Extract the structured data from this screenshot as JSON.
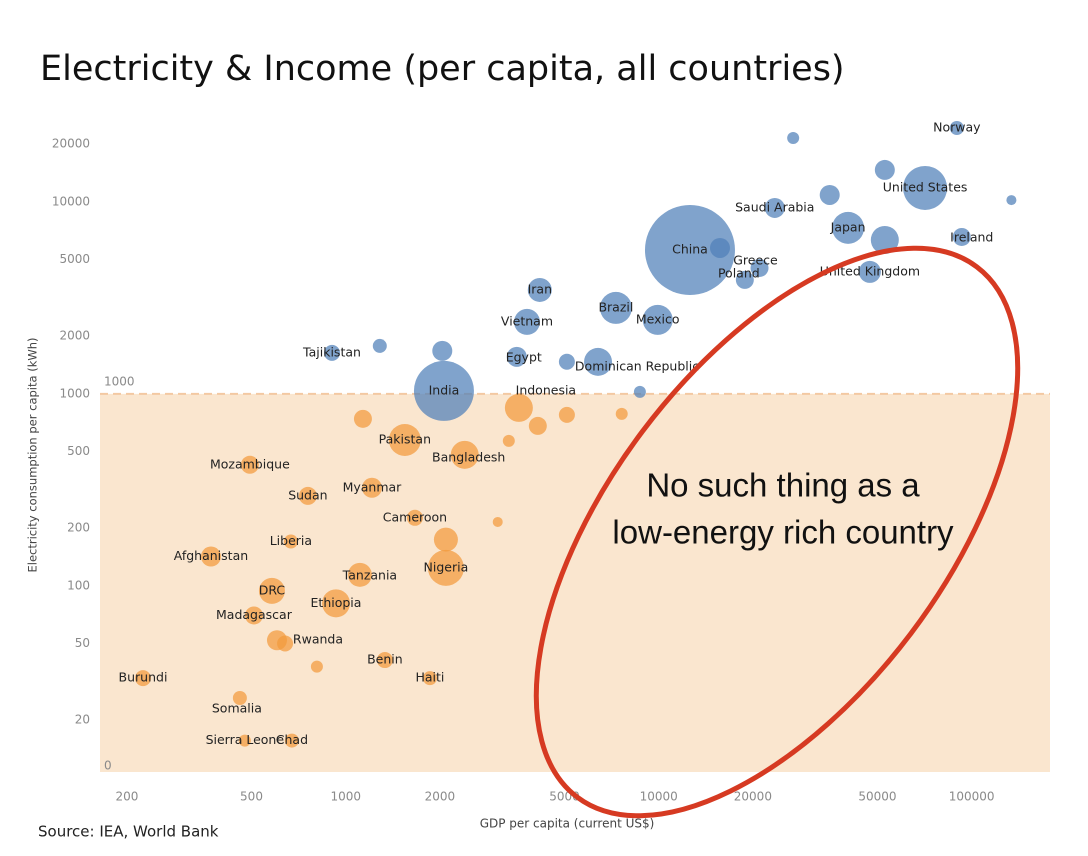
{
  "chart_data": {
    "type": "scatter",
    "title": "Electricity & Income (per capita, all countries)",
    "xlabel": "GDP per capita (current US$)",
    "ylabel": "Electricity consumption per capita (kWh)",
    "source": "Source: IEA, World Bank",
    "xscale": "log",
    "yscale": "log",
    "xlim": [
      164,
      178000
    ],
    "ylim": [
      10.7,
      34000
    ],
    "xticks": [
      200,
      500,
      1000,
      2000,
      5000,
      10000,
      20000,
      50000,
      100000
    ],
    "yticks": [
      20,
      50,
      100,
      200,
      500,
      1000,
      2000,
      5000,
      10000,
      20000
    ],
    "y_floor_label": "0",
    "threshold": 1000,
    "threshold_color": "#fae6cf",
    "annotation": [
      "No such thing as a",
      "low-energy rich country"
    ],
    "annotation_color": "#d63a22",
    "series": [
      {
        "color": "#f39a3b",
        "labels": [
          "Pakistan",
          "Bangladesh",
          "Mozambique",
          "Myanmar",
          "Sudan",
          "Cameroon",
          "Liberia",
          "Afghanistan",
          "Nigeria",
          "Tanzania",
          "DRC",
          "Ethiopia",
          "Madagascar",
          "Rwanda",
          "Benin",
          "Haiti",
          "Burundi",
          "Somalia",
          "Sierra Leone",
          "Chad",
          "Indonesia",
          null,
          null,
          null,
          null,
          null,
          null,
          null,
          null,
          null
        ],
        "x": [
          1545,
          2400,
          494,
          1213,
          757,
          1664,
          668,
          371,
          2090,
          1110,
          581,
          931,
          509,
          603,
          1334,
          1858,
          225,
          459,
          476,
          673,
          3575,
          1135,
          4110,
          5090,
          7620,
          2090,
          3320,
          3060,
          809,
          640
        ],
        "y": [
          575,
          481,
          427,
          324,
          294,
          226,
          170,
          142,
          124,
          114,
          94,
          81,
          70,
          52,
          41,
          33,
          33,
          26,
          15.6,
          15.6,
          845,
          741,
          681,
          777,
          787,
          174,
          569,
          215,
          37.9,
          50
        ],
        "sizes": [
          16,
          14,
          9,
          10,
          9,
          8,
          7,
          10,
          18,
          12,
          13,
          14,
          9,
          10,
          8,
          7,
          8,
          7,
          6,
          7,
          14,
          9,
          9,
          8,
          6,
          12,
          6,
          5,
          6,
          8
        ]
      },
      {
        "color": "#4f80b8",
        "labels": [
          "India",
          "Egypt",
          "Dominican Republic",
          "Vietnam",
          "Iran",
          "Brazil",
          "Mexico",
          "China",
          "Greece",
          "Poland",
          "Saudi Arabia",
          "Japan",
          "United Kingdom",
          "United States",
          "Norway",
          "Ireland",
          "Tajikistan",
          null,
          null,
          null,
          null,
          null,
          null,
          null,
          null,
          null,
          null
        ],
        "x": [
          2060,
          3520,
          6400,
          3795,
          4170,
          7300,
          9930,
          12590,
          21000,
          18850,
          23500,
          40300,
          47300,
          71000,
          89700,
          93000,
          904,
          1285,
          2035,
          26900,
          134000,
          52800,
          35200,
          52800,
          15700,
          5090,
          8710
        ],
        "y": [
          1036,
          1559,
          1468,
          2371,
          3480,
          2805,
          2430,
          5620,
          4530,
          3925,
          9310,
          7330,
          4320,
          11830,
          24300,
          6570,
          1635,
          1778,
          1675,
          21540,
          10230,
          14690,
          10880,
          6340,
          5760,
          1470,
          1024
        ],
        "sizes": [
          30,
          10,
          14,
          13,
          12,
          16,
          15,
          45,
          9,
          9,
          10,
          16,
          11,
          22,
          7,
          9,
          8,
          7,
          10,
          6,
          5,
          10,
          10,
          14,
          10,
          8,
          6
        ]
      }
    ]
  }
}
